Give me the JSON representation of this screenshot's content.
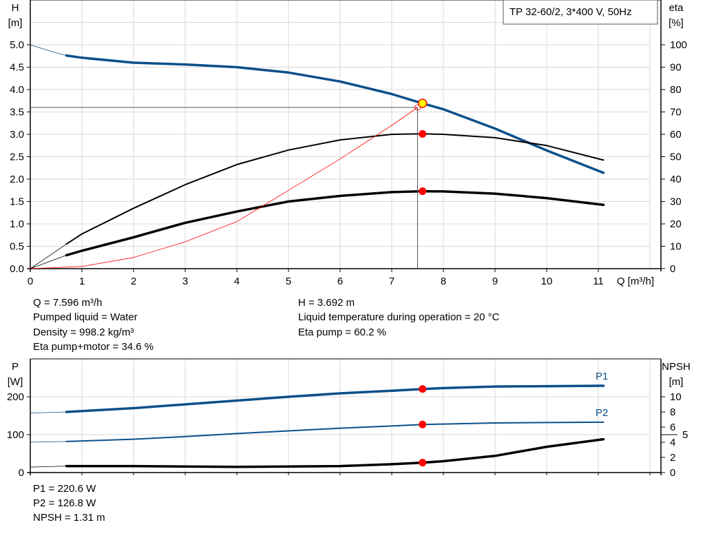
{
  "legend_box": "TP 32-60/2, 3*400 V, 50Hz",
  "colors": {
    "blue": "#0b4f8a",
    "black": "#000000",
    "red": "#ff0000",
    "yellow": "#ffff00",
    "grid": "#d8d8d8"
  },
  "chart_data": [
    {
      "type": "line",
      "title": "",
      "xlabel": "Q [m³/h]",
      "ylabel": "H",
      "ylabel_unit": "[m]",
      "y2label": "eta",
      "y2label_unit": "[%]",
      "xlim": [
        0,
        12
      ],
      "ylim": [
        0,
        6
      ],
      "y2lim": [
        0,
        120
      ],
      "x_ticks": [
        "0",
        "1",
        "2",
        "3",
        "4",
        "5",
        "6",
        "7",
        "8",
        "9",
        "10",
        "11"
      ],
      "y_ticks": [
        "0.0",
        "0.5",
        "1.0",
        "1.5",
        "2.0",
        "2.5",
        "3.0",
        "3.5",
        "4.0",
        "4.5",
        "5.0"
      ],
      "y2_ticks": [
        "0",
        "10",
        "20",
        "30",
        "40",
        "50",
        "60",
        "70",
        "80",
        "90",
        "100"
      ],
      "grid": true,
      "series": [
        {
          "id": "H",
          "axis": "y",
          "color": "#0b4f8a",
          "width": 3.5,
          "x": [
            0.7,
            1,
            2,
            3,
            4,
            5,
            6,
            7,
            7.6,
            8,
            9,
            10,
            11.1
          ],
          "y": [
            4.76,
            4.71,
            4.6,
            4.56,
            4.5,
            4.38,
            4.18,
            3.9,
            3.69,
            3.56,
            3.13,
            2.64,
            2.14
          ],
          "extrapolated": {
            "x": [
              0,
              0.35,
              0.7
            ],
            "y": [
              5.0,
              4.87,
              4.76
            ]
          }
        },
        {
          "id": "eta-pump",
          "axis": "y2",
          "color": "#000000",
          "width": 2,
          "x": [
            0.7,
            1,
            2,
            3,
            4,
            5,
            6,
            7,
            7.6,
            8,
            9,
            10,
            11.1
          ],
          "y": [
            11,
            15.5,
            27,
            37.5,
            46.5,
            53,
            57.5,
            60,
            60.2,
            60,
            58.5,
            55,
            48.5
          ],
          "extrapolated": {
            "x": [
              0,
              0.7
            ],
            "y": [
              0,
              11
            ]
          }
        },
        {
          "id": "eta-pump-motor",
          "axis": "y2",
          "color": "#000000",
          "width": 3.5,
          "x": [
            0.7,
            1,
            2,
            3,
            4,
            5,
            6,
            7,
            7.6,
            8,
            9,
            10,
            11.1
          ],
          "y": [
            6,
            8,
            14,
            20.5,
            25.5,
            30,
            32.5,
            34.2,
            34.6,
            34.5,
            33.5,
            31.5,
            28.5
          ],
          "extrapolated": {
            "x": [
              0,
              0.7
            ],
            "y": [
              0,
              6
            ]
          }
        },
        {
          "id": "system-curve",
          "axis": "y",
          "color": "#ff0000",
          "width": 0.8,
          "x": [
            0,
            1,
            2,
            3,
            4,
            5,
            6,
            7,
            7.5
          ],
          "y": [
            0,
            0.05,
            0.25,
            0.6,
            1.05,
            1.75,
            2.45,
            3.2,
            3.6
          ]
        }
      ],
      "duty_point": {
        "Q": 7.5,
        "H": 3.6
      },
      "operating_point": {
        "Q": 7.596,
        "H": 3.692,
        "eta_pump": 60.2,
        "eta_pump_motor": 34.6
      }
    },
    {
      "type": "line",
      "title": "",
      "ylabel": "P",
      "ylabel_unit": "[W]",
      "y2label": "NPSH",
      "y2label_unit": "[m]",
      "xlim": [
        0,
        12
      ],
      "ylim": [
        0,
        300
      ],
      "y2lim": [
        0,
        15
      ],
      "y_ticks": [
        "0",
        "100",
        "200"
      ],
      "y2_ticks": [
        "0",
        "2",
        "4",
        "5",
        "6",
        "8",
        "10"
      ],
      "grid": true,
      "series": [
        {
          "id": "P1",
          "name": "P1",
          "axis": "y",
          "color": "#0b4f8a",
          "width": 3.5,
          "x": [
            0.7,
            2,
            3,
            4,
            5,
            6,
            7,
            7.6,
            8,
            9,
            10,
            11.1
          ],
          "y": [
            160,
            170,
            180,
            190,
            200,
            209,
            216,
            220.6,
            223,
            227,
            228,
            229
          ],
          "extrapolated": {
            "x": [
              0,
              0.7
            ],
            "y": [
              157,
              160
            ]
          }
        },
        {
          "id": "P2",
          "name": "P2",
          "axis": "y",
          "color": "#0b4f8a",
          "width": 2,
          "x": [
            0.7,
            2,
            3,
            4,
            5,
            6,
            7,
            7.6,
            8,
            9,
            10,
            11.1
          ],
          "y": [
            82,
            88,
            95,
            103,
            110,
            117,
            123,
            126.8,
            128,
            131,
            132,
            133
          ],
          "extrapolated": {
            "x": [
              0,
              0.7
            ],
            "y": [
              80,
              82
            ]
          }
        },
        {
          "id": "NPSH",
          "axis": "y2",
          "color": "#000000",
          "width": 3.5,
          "x": [
            0.7,
            2,
            4,
            6,
            7,
            7.6,
            8,
            9,
            10,
            11.1
          ],
          "y": [
            0.85,
            0.85,
            0.75,
            0.85,
            1.1,
            1.31,
            1.5,
            2.2,
            3.4,
            4.4
          ],
          "extrapolated": {
            "x": [
              0,
              0.7
            ],
            "y": [
              0.72,
              0.85
            ]
          }
        }
      ],
      "operating_point": {
        "Q": 7.596,
        "P1": 220.6,
        "P2": 126.8,
        "NPSH": 1.31
      }
    }
  ],
  "info_top_left": [
    "Q = 7.596 m³/h",
    "Pumped liquid = Water",
    "Density = 998.2 kg/m³",
    "Eta pump+motor = 34.6 %"
  ],
  "info_top_right": [
    "H = 3.692 m",
    "Liquid temperature during operation = 20 °C",
    "Eta pump = 60.2 %"
  ],
  "info_bottom": [
    "P1 = 220.6 W",
    "P2 = 126.8 W",
    "NPSH = 1.31 m"
  ]
}
